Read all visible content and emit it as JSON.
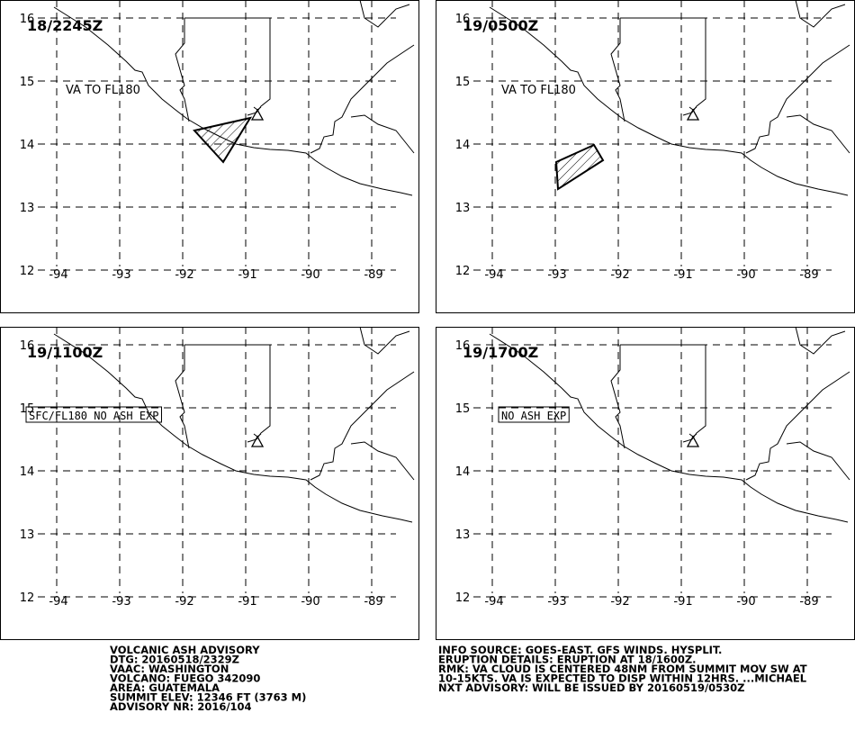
{
  "map_grid": {
    "lat_labels": [
      16,
      15,
      14,
      13,
      12
    ],
    "lon_labels": [
      -94,
      -93,
      -92,
      -91,
      -90,
      -89
    ]
  },
  "panels": [
    {
      "time": "18/2245Z",
      "annotation": "VA TO FL180"
    },
    {
      "time": "19/0500Z",
      "annotation": "VA TO FL180"
    },
    {
      "time": "19/1100Z",
      "annotation": "SFC/FL180 NO ASH EXP"
    },
    {
      "time": "19/1700Z",
      "annotation": "NO ASH EXP"
    }
  ],
  "advisory_left": [
    "VOLCANIC ASH ADVISORY",
    "DTG: 20160518/2329Z",
    "VAAC: WASHINGTON",
    "VOLCANO: FUEGO 342090",
    "AREA: GUATEMALA",
    "SUMMIT ELEV: 12346 FT (3763 M)",
    "ADVISORY NR: 2016/104"
  ],
  "advisory_right": [
    "INFO SOURCE: GOES-EAST. GFS WINDS. HYSPLIT.",
    "ERUPTION DETAILS: ERUPTION AT 18/1600Z.",
    "RMK: VA CLOUD IS CENTERED 48NM FROM SUMMIT MOV SW AT",
    "10-15KTS. VA IS EXPECTED TO DISP WITHIN 12HRS. ...MICHAEL",
    "NXT ADVISORY: WILL BE ISSUED BY 20160519/0530Z"
  ]
}
